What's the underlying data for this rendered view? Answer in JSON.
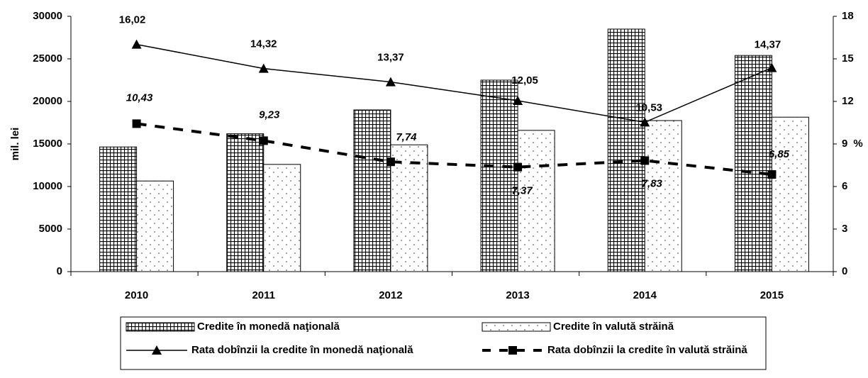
{
  "chart_data": {
    "type": "bar_line",
    "y_label": "mil. lei",
    "y2_label": "%",
    "categories": [
      "2010",
      "2011",
      "2012",
      "2013",
      "2014",
      "2015"
    ],
    "ylim": [
      0,
      30000
    ],
    "yticks": [
      0,
      5000,
      10000,
      15000,
      20000,
      25000,
      30000
    ],
    "y2lim": [
      0,
      18
    ],
    "y2ticks": [
      0,
      3,
      6,
      9,
      12,
      15,
      18
    ],
    "series": [
      {
        "name": "Credite în monedă naţională",
        "type": "bar",
        "pattern": "grid",
        "color": "#000000",
        "values": [
          14650,
          16200,
          19000,
          22500,
          28500,
          25400
        ]
      },
      {
        "name": "Credite în valută străină",
        "type": "bar",
        "pattern": "dots",
        "color": "#000000",
        "values": [
          10650,
          12600,
          14900,
          16600,
          17750,
          18150
        ]
      },
      {
        "name": "Rata dobînzii la credite în monedă naţională",
        "type": "line",
        "axis": "y2",
        "marker": "triangle",
        "dash": false,
        "color": "#000000",
        "values": [
          16.02,
          14.32,
          13.37,
          12.05,
          10.53,
          14.37
        ],
        "value_labels": [
          "16,02",
          "14,32",
          "13,37",
          "12,05",
          "10,53",
          "14,37"
        ]
      },
      {
        "name": "Rata dobînzii la credite în valută străină",
        "type": "line",
        "axis": "y2",
        "marker": "square",
        "dash": true,
        "color": "#000000",
        "values": [
          10.43,
          9.23,
          7.74,
          7.37,
          7.83,
          6.85
        ],
        "value_labels": [
          "10,43",
          "9,23",
          "7,74",
          "7,37",
          "7,83",
          "6,85"
        ]
      }
    ]
  }
}
